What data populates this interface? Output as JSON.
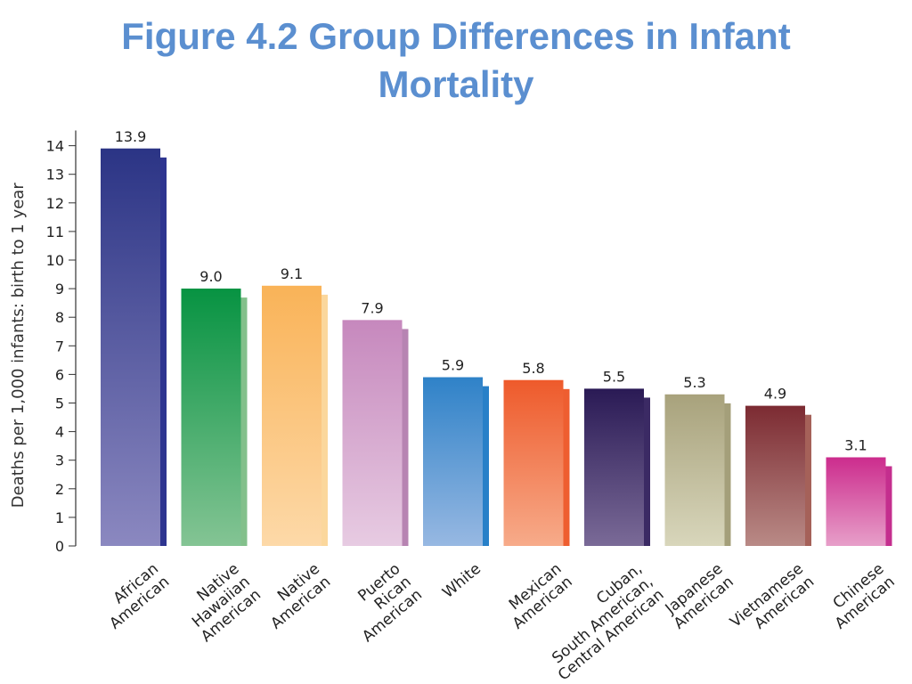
{
  "title": {
    "line1": "Figure 4.2 Group Differences in Infant",
    "line2": "Mortality"
  },
  "chart_data": {
    "type": "bar",
    "title": "Figure 4.2 Group Differences in Infant Mortality",
    "ylabel": "Deaths per 1,000 infants: birth to 1 year",
    "xlabel": "",
    "ylim": [
      0,
      15
    ],
    "yticks": [
      "0",
      "1",
      "2",
      "3",
      "4",
      "5",
      "6",
      "7",
      "8",
      "9",
      "10",
      "11",
      "12",
      "13",
      "14"
    ],
    "grid": false,
    "legend": "none",
    "categories": [
      [
        "African",
        "American"
      ],
      [
        "Native",
        "Hawaiian",
        "American"
      ],
      [
        "Native",
        "American"
      ],
      [
        "Puerto",
        "Rican",
        "American"
      ],
      [
        "White"
      ],
      [
        "Mexican",
        "American"
      ],
      [
        "Cuban,",
        "South American,",
        "Central American"
      ],
      [
        "Japanese",
        "American"
      ],
      [
        "Vietnamese",
        "American"
      ],
      [
        "Chinese",
        "American"
      ]
    ],
    "values": [
      13.9,
      9.0,
      9.1,
      7.9,
      5.9,
      5.8,
      5.5,
      5.3,
      4.9,
      3.1
    ],
    "value_labels": [
      "13.9",
      "9.0",
      "9.1",
      "7.9",
      "5.9",
      "5.8",
      "5.5",
      "5.3",
      "4.9",
      "3.1"
    ],
    "colors": [
      {
        "top": "#2b3485",
        "bottom": "#8b88c0",
        "side": "#2e3590"
      },
      {
        "top": "#079342",
        "bottom": "#84c494",
        "side": "#83c08b"
      },
      {
        "top": "#f9b358",
        "bottom": "#fdd9a8",
        "side": "#fbd79c"
      },
      {
        "top": "#c688bd",
        "bottom": "#e7cbe2",
        "side": "#b784b2"
      },
      {
        "top": "#2f82c8",
        "bottom": "#97b8e2",
        "side": "#2880c8"
      },
      {
        "top": "#ee5a2b",
        "bottom": "#f7ab8a",
        "side": "#ee5e30"
      },
      {
        "top": "#2a1a55",
        "bottom": "#7a6a97",
        "side": "#3b2a64"
      },
      {
        "top": "#a8a27c",
        "bottom": "#d8d6bb",
        "side": "#a49f7a"
      },
      {
        "top": "#7c2b32",
        "bottom": "#b98a86",
        "side": "#a56159"
      },
      {
        "top": "#cc2c8d",
        "bottom": "#e79fc9",
        "side": "#c42e8e"
      }
    ]
  }
}
